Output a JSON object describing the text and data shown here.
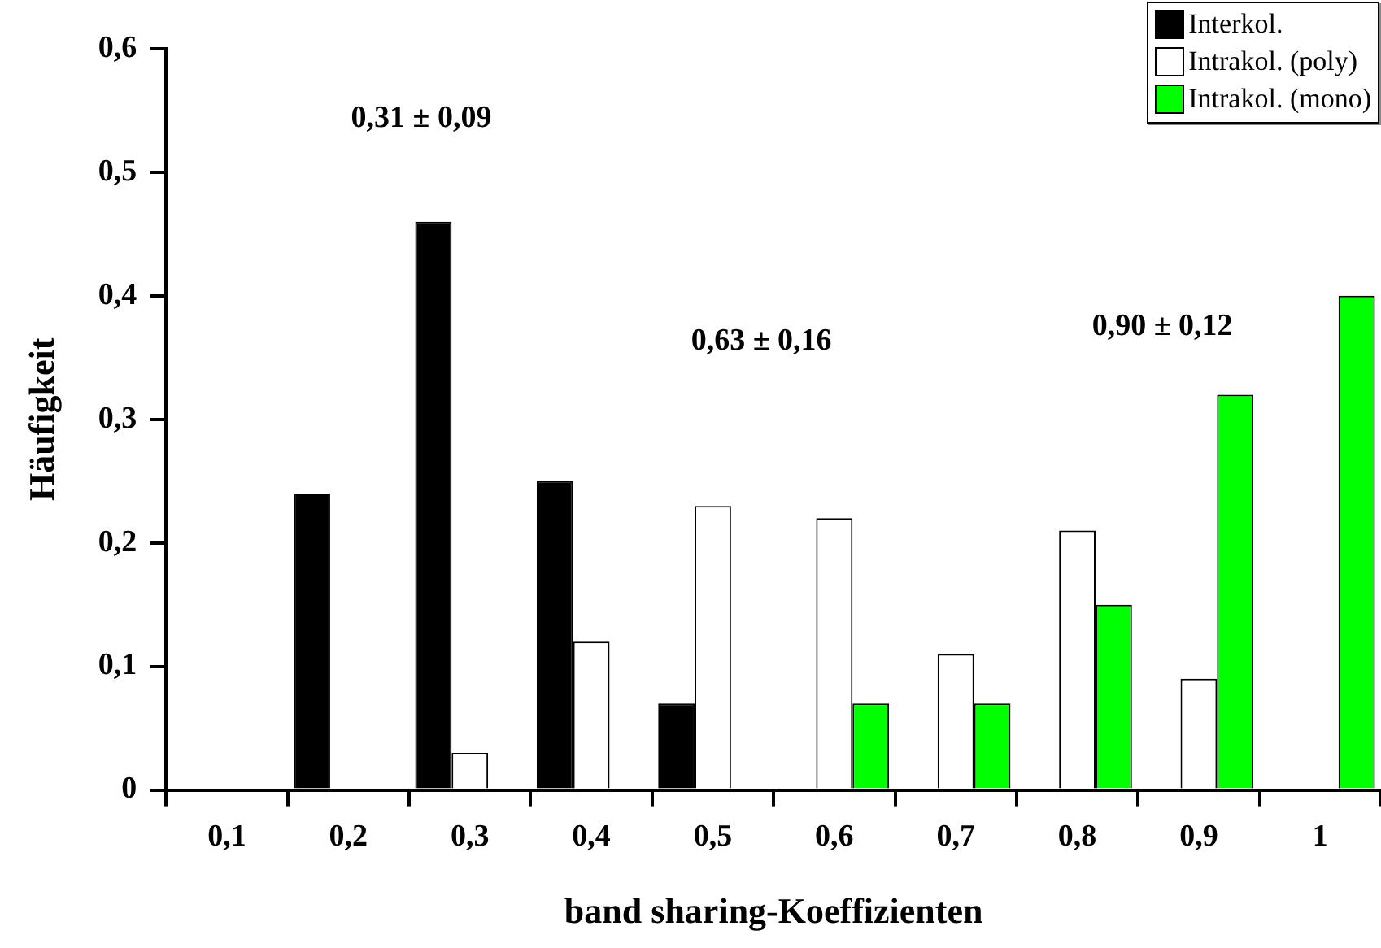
{
  "chart_data": {
    "type": "bar",
    "xlabel": "band sharing-Koeffizienten",
    "ylabel": "Häufigkeit",
    "categories": [
      "0,1",
      "0,2",
      "0,3",
      "0,4",
      "0,5",
      "0,6",
      "0,7",
      "0,8",
      "0,9",
      "1"
    ],
    "series": [
      {
        "name": "Interkol.",
        "color": "#000000",
        "values": [
          0,
          0.24,
          0.46,
          0.25,
          0.07,
          0,
          0,
          0,
          0,
          0
        ]
      },
      {
        "name": "Intrakol. (poly)",
        "color": "#ffffff",
        "values": [
          0,
          0,
          0.03,
          0.12,
          0.23,
          0.22,
          0.11,
          0.21,
          0.09,
          0
        ]
      },
      {
        "name": "Intrakol. (mono)",
        "color": "#00ff00",
        "values": [
          0,
          0,
          0,
          0,
          0,
          0.07,
          0.07,
          0.15,
          0.32,
          0.4
        ]
      }
    ],
    "ylim": [
      0,
      0.6
    ],
    "yticks": [
      {
        "value": 0,
        "label": "0"
      },
      {
        "value": 0.1,
        "label": "0,1"
      },
      {
        "value": 0.2,
        "label": "0,2"
      },
      {
        "value": 0.3,
        "label": "0,3"
      },
      {
        "value": 0.4,
        "label": "0,4"
      },
      {
        "value": 0.5,
        "label": "0,5"
      },
      {
        "value": 0.6,
        "label": "0,6"
      }
    ],
    "annotations": [
      "0,31 ± 0,09",
      "0,63 ± 0,16",
      "0,90 ± 0,12"
    ],
    "legend": "top right",
    "grid": false
  }
}
